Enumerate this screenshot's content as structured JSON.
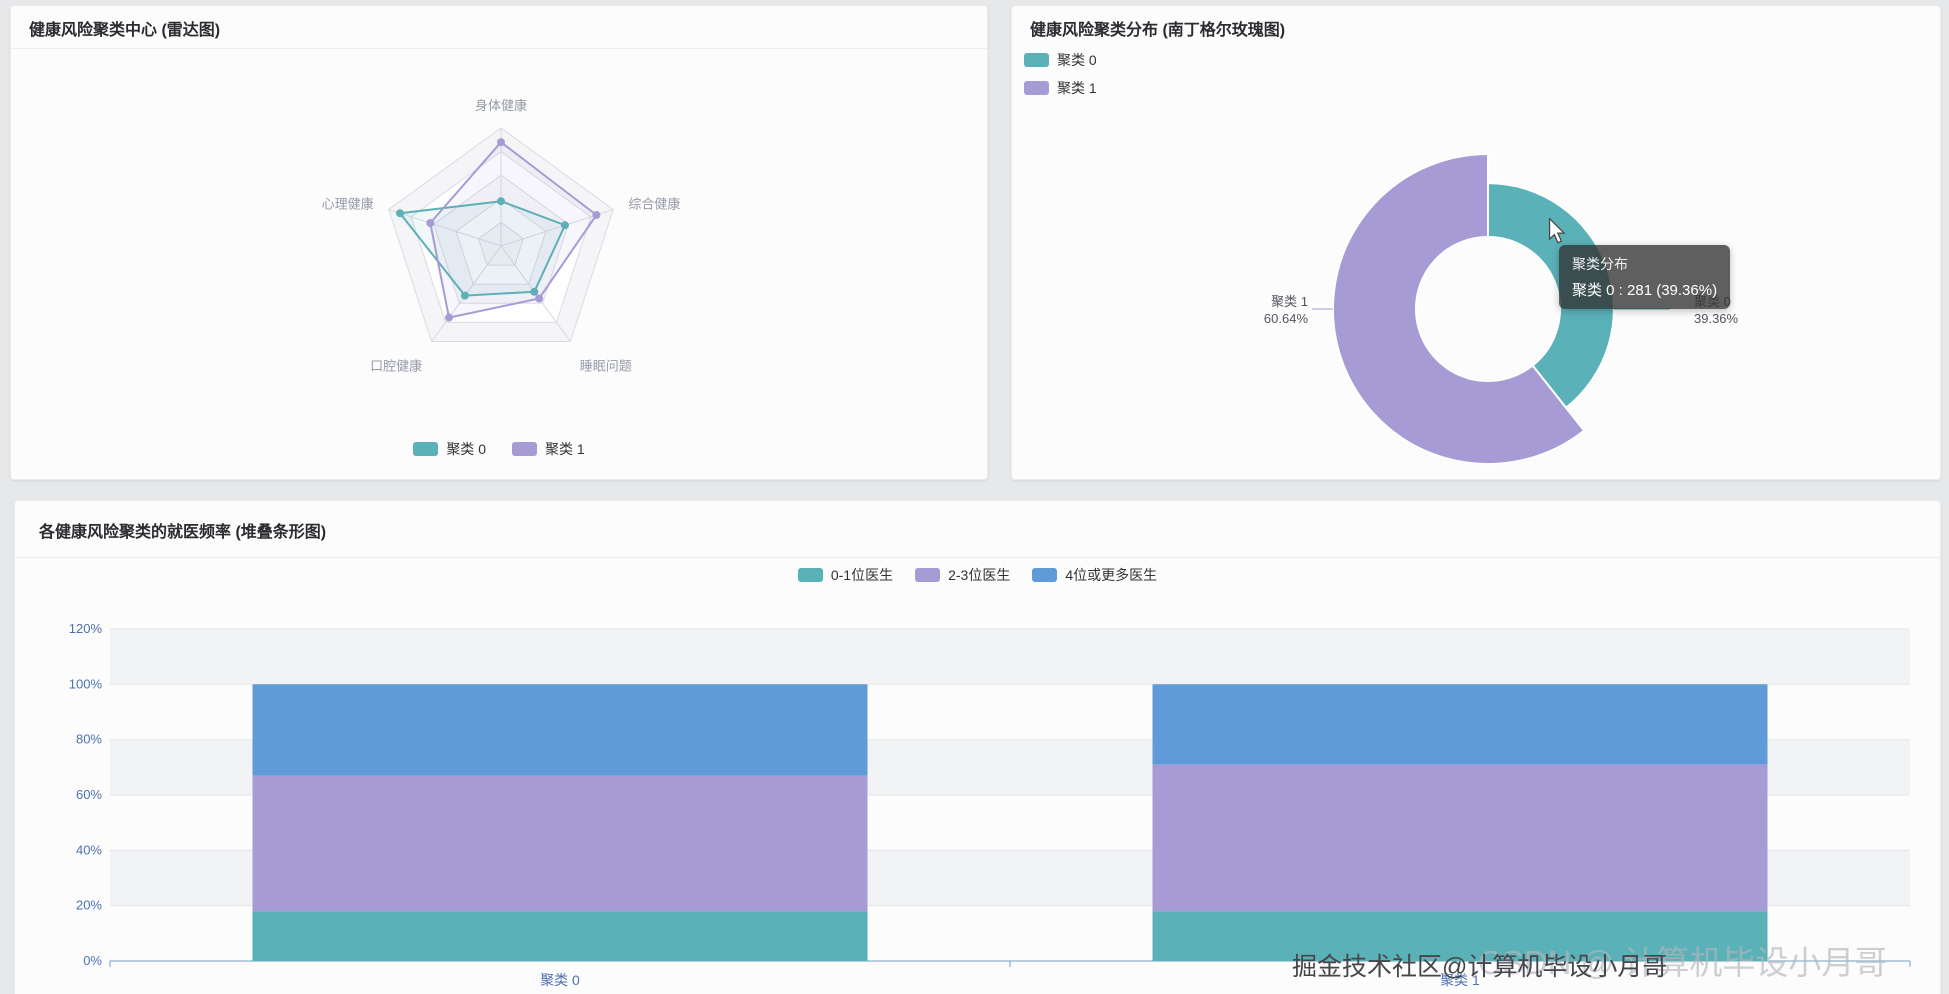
{
  "palette": {
    "teal": "#5ab1b7",
    "purple": "#a79bd5",
    "blue": "#5e9bd8",
    "axis_label": "#4d71b3",
    "grid_line": "#e3e5e8",
    "axis_line": "#6f9fca",
    "radar_label": "#969aa6",
    "radar_grid": "#d8dbe2",
    "tooltip_bg": "rgba(50,50,50,0.78)",
    "card_bg": "#fcfcfd",
    "page_bg": "#e7e8ea"
  },
  "panels": {
    "radar": {
      "title": "健康风险聚类中心 (雷达图)"
    },
    "rose": {
      "title": "健康风险聚类分布 (南丁格尔玫瑰图)"
    },
    "bars": {
      "title": "各健康风险聚类的就医频率 (堆叠条形图)"
    }
  },
  "rose_labels": {
    "left_name": "聚类 1",
    "left_pct": "60.64%",
    "right_name": "聚类 0",
    "right_pct": "39.36%"
  },
  "tooltip": {
    "title": "聚类分布",
    "value": "聚类 0 : 281 (39.36%)"
  },
  "watermark": {
    "front": "掘金技术社区@计算机毕设小月哥",
    "back": "CSDN @ 计算机毕设小月哥"
  },
  "chart_data": [
    {
      "id": "cluster-centers-radar",
      "type": "radar",
      "title": "健康风险聚类中心 (雷达图)",
      "axes": [
        "身体健康",
        "综合健康",
        "睡眠问题",
        "口腔健康",
        "心理健康"
      ],
      "range": [
        0,
        1
      ],
      "rings": 5,
      "legend_position": "bottom",
      "series": [
        {
          "name": "聚类 0",
          "color": "#5ab1b7",
          "values": [
            0.38,
            0.57,
            0.48,
            0.52,
            0.9
          ]
        },
        {
          "name": "聚类 1",
          "color": "#a79bd5",
          "values": [
            0.88,
            0.85,
            0.55,
            0.75,
            0.63
          ]
        }
      ]
    },
    {
      "id": "cluster-distribution-rose",
      "type": "pie",
      "style": "nightingale-rose-donut",
      "title": "健康风险聚类分布 (南丁格尔玫瑰图)",
      "legend_position": "top-left",
      "slices": [
        {
          "name": "聚类 0",
          "color": "#5ab1b7",
          "count": 281,
          "percent": 39.36
        },
        {
          "name": "聚类 1",
          "color": "#a79bd5",
          "percent": 60.64
        }
      ],
      "tooltip": {
        "title": "聚类分布",
        "text": "聚类 0 : 281 (39.36%)"
      }
    },
    {
      "id": "doctor-visit-frequency-stacked",
      "type": "bar",
      "stacked": true,
      "title": "各健康风险聚类的就医频率 (堆叠条形图)",
      "categories": [
        "聚类 0",
        "聚类 1"
      ],
      "series": [
        {
          "name": "0-1位医生",
          "color": "#5ab1b7",
          "values": [
            18,
            18
          ]
        },
        {
          "name": "2-3位医生",
          "color": "#a79bd5",
          "values": [
            49,
            53
          ]
        },
        {
          "name": "4位或更多医生",
          "color": "#5e9bd8",
          "values": [
            33,
            29
          ]
        }
      ],
      "ylabel": "",
      "ylim": [
        0,
        120
      ],
      "ytick_step": 20,
      "ytick_suffix": "%",
      "legend_position": "top-center",
      "grid": true
    }
  ]
}
